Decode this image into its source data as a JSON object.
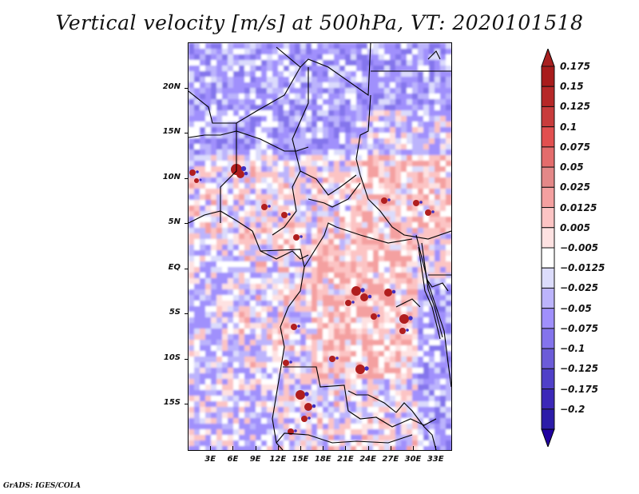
{
  "title": "Vertical velocity [m/s] at 500hPa, VT: 2020101518",
  "credit": "GrADS: IGES/COLA",
  "chart_data": {
    "type": "heatmap",
    "title": "Vertical velocity [m/s] at 500hPa, VT: 2020101518",
    "variable": "Vertical velocity",
    "units": "m/s",
    "level": "500hPa",
    "valid_time": "2020101518",
    "xlabel": "",
    "ylabel": "",
    "x_range_deg": [
      0,
      35
    ],
    "y_range_deg": [
      -20,
      25
    ],
    "x_ticks": [
      {
        "value": 3,
        "label": "3E"
      },
      {
        "value": 6,
        "label": "6E"
      },
      {
        "value": 9,
        "label": "9E"
      },
      {
        "value": 12,
        "label": "12E"
      },
      {
        "value": 15,
        "label": "15E"
      },
      {
        "value": 18,
        "label": "18E"
      },
      {
        "value": 21,
        "label": "21E"
      },
      {
        "value": 24,
        "label": "24E"
      },
      {
        "value": 27,
        "label": "27E"
      },
      {
        "value": 30,
        "label": "30E"
      },
      {
        "value": 33,
        "label": "33E"
      }
    ],
    "y_ticks": [
      {
        "value": 20,
        "label": "20N"
      },
      {
        "value": 15,
        "label": "15N"
      },
      {
        "value": 10,
        "label": "10N"
      },
      {
        "value": 5,
        "label": "5N"
      },
      {
        "value": 0,
        "label": "EQ"
      },
      {
        "value": -5,
        "label": "5S"
      },
      {
        "value": -10,
        "label": "10S"
      },
      {
        "value": -15,
        "label": "15S"
      }
    ],
    "colorbar": {
      "orientation": "vertical",
      "placement": "right",
      "extend": "both",
      "levels": [
        {
          "label": "0.175",
          "color": "#a81c1c"
        },
        {
          "label": "0.15",
          "color": "#b62828"
        },
        {
          "label": "0.125",
          "color": "#c83c3c"
        },
        {
          "label": "0.1",
          "color": "#e25050"
        },
        {
          "label": "0.075",
          "color": "#e46c6c"
        },
        {
          "label": "0.05",
          "color": "#e48888"
        },
        {
          "label": "0.025",
          "color": "#f4a0a0"
        },
        {
          "label": "0.0125",
          "color": "#fcc4c4"
        },
        {
          "label": "0.005",
          "color": "#fee2e2"
        },
        {
          "label": "-0.005",
          "color": "#ffffff"
        },
        {
          "label": "-0.0125",
          "color": "#dcdcfc"
        },
        {
          "label": "-0.025",
          "color": "#bcb4fc"
        },
        {
          "label": "-0.05",
          "color": "#a090fc"
        },
        {
          "label": "-0.075",
          "color": "#8474ec"
        },
        {
          "label": "-0.1",
          "color": "#6c5cd8"
        },
        {
          "label": "-0.125",
          "color": "#5040c8"
        },
        {
          "label": "-0.175",
          "color": "#3c28b8"
        },
        {
          "label": "-0.2",
          "color": "#2c1ca8"
        }
      ],
      "top_arrow_color": "#a82020",
      "bottom_arrow_color": "#2000a0"
    },
    "qualitative_features": [
      "Strong upward motion (dark red, >0.15 m/s) cells over central-southern DR Congo around 22-25E, 5-8S",
      "Strong upward motion cells over western Angola near 14-16E, 12-16S",
      "Isolated strong updraft near 7E, 11N (Nigeria)",
      "Widespread weak subsidence (light to medium blue) over Sahara north of 15N and over the South Atlantic",
      "Mostly weak positive values (pink) across Central African Republic, Cameroon and Gulf of Guinea coast"
    ]
  }
}
